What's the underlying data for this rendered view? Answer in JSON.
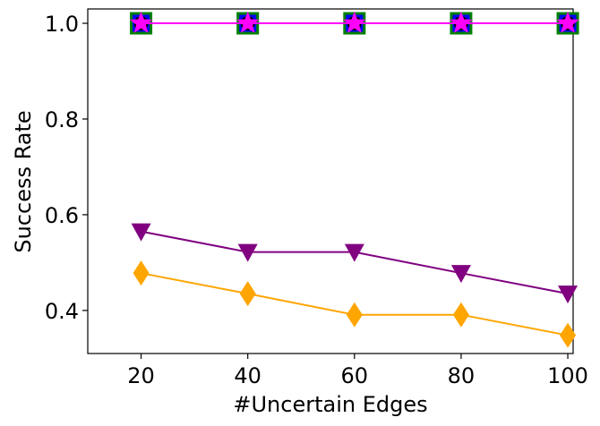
{
  "chart_data": {
    "type": "line",
    "xlabel": "#Uncertain Edges",
    "ylabel": "Success Rate",
    "x": [
      20,
      40,
      60,
      80,
      100
    ],
    "xlim": [
      10,
      101
    ],
    "ylim": [
      0.31,
      1.03
    ],
    "xticks": [
      20,
      40,
      60,
      80,
      100
    ],
    "xtick_labels": [
      "20",
      "40",
      "60",
      "80",
      "100"
    ],
    "yticks": [
      0.4,
      0.6,
      0.8,
      1.0
    ],
    "ytick_labels": [
      "0.4",
      "0.6",
      "0.8",
      "1.0"
    ],
    "grid": false,
    "legend": "none",
    "series": [
      {
        "marker": "square",
        "color": "#0000ff",
        "edge_color": "#008000",
        "values": [
          1.0,
          1.0,
          1.0,
          1.0,
          1.0
        ]
      },
      {
        "marker": "circle",
        "color": "#000000",
        "values": [
          1.0,
          1.0,
          1.0,
          1.0,
          1.0
        ]
      },
      {
        "marker": "star",
        "color": "#ff00ff",
        "values": [
          1.0,
          1.0,
          1.0,
          1.0,
          1.0
        ]
      },
      {
        "marker": "triangle-down",
        "color": "#800080",
        "values": [
          0.565,
          0.522,
          0.522,
          0.478,
          0.435
        ]
      },
      {
        "marker": "diamond",
        "color": "#ffa500",
        "values": [
          0.478,
          0.435,
          0.391,
          0.391,
          0.348
        ]
      }
    ]
  }
}
